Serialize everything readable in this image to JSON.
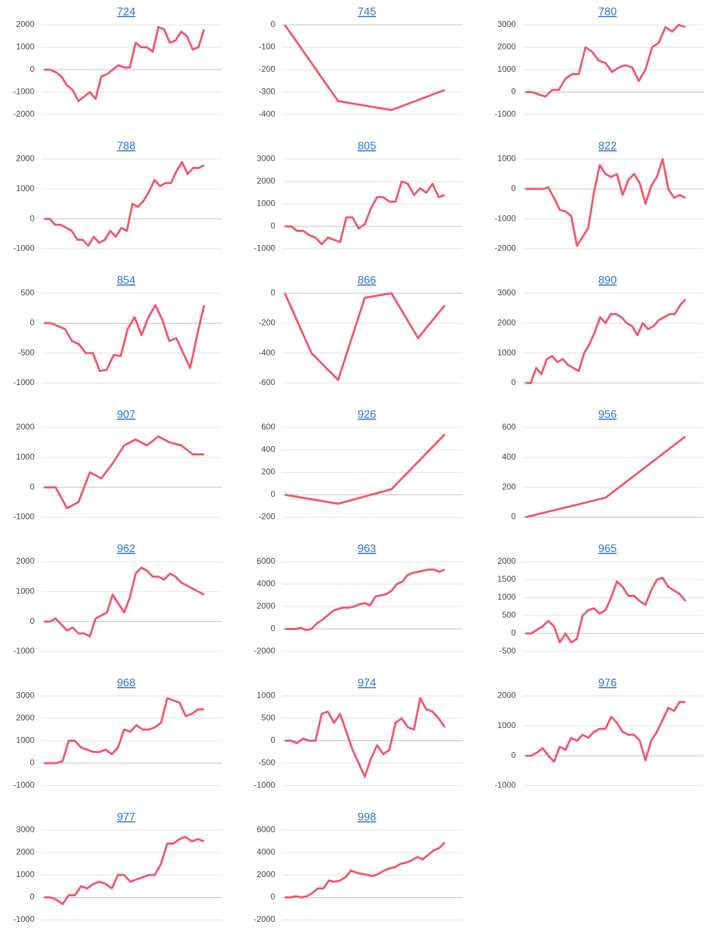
{
  "chart_data": [
    {
      "type": "line",
      "title": "724",
      "color": "#f25570",
      "ylim": [
        -2000,
        2000
      ],
      "yticks": [
        2000,
        1000,
        0,
        -1000,
        -2000
      ],
      "grid": true,
      "values": [
        0,
        0,
        -100,
        -300,
        -700,
        -900,
        -1400,
        -1200,
        -1000,
        -1300,
        -300,
        -200,
        0,
        200,
        100,
        100,
        1200,
        1000,
        1000,
        800,
        1900,
        1800,
        1200,
        1300,
        1700,
        1500,
        900,
        1000,
        1800
      ]
    },
    {
      "type": "line",
      "title": "745",
      "color": "#f25570",
      "ylim": [
        -400,
        0
      ],
      "yticks": [
        0,
        -100,
        -200,
        -300,
        -400
      ],
      "grid": true,
      "values": [
        0,
        -340,
        -380,
        -290
      ]
    },
    {
      "type": "line",
      "title": "780",
      "color": "#f25570",
      "ylim": [
        -1000,
        3000
      ],
      "yticks": [
        3000,
        2000,
        1000,
        0,
        -1000
      ],
      "grid": true,
      "values": [
        0,
        0,
        -100,
        -200,
        100,
        100,
        600,
        800,
        800,
        2000,
        1800,
        1400,
        1300,
        900,
        1100,
        1200,
        1100,
        500,
        1000,
        2000,
        2200,
        2900,
        2700,
        3000,
        2900
      ]
    },
    {
      "type": "line",
      "title": "788",
      "color": "#f25570",
      "ylim": [
        -1000,
        2000
      ],
      "yticks": [
        2000,
        1000,
        0,
        -1000
      ],
      "grid": true,
      "values": [
        0,
        0,
        -200,
        -200,
        -300,
        -400,
        -700,
        -700,
        -900,
        -600,
        -800,
        -700,
        -400,
        -600,
        -300,
        -400,
        500,
        400,
        600,
        900,
        1300,
        1100,
        1200,
        1200,
        1600,
        1900,
        1500,
        1700,
        1700,
        1800
      ]
    },
    {
      "type": "line",
      "title": "805",
      "color": "#f25570",
      "ylim": [
        -1000,
        3000
      ],
      "yticks": [
        3000,
        2000,
        1000,
        0,
        -1000
      ],
      "grid": true,
      "values": [
        0,
        0,
        -200,
        -200,
        -400,
        -500,
        -800,
        -500,
        -600,
        -700,
        400,
        400,
        -100,
        100,
        800,
        1300,
        1300,
        1100,
        1100,
        2000,
        1900,
        1400,
        1700,
        1500,
        1900,
        1300,
        1400
      ]
    },
    {
      "type": "line",
      "title": "822",
      "color": "#f25570",
      "ylim": [
        -2000,
        1000
      ],
      "yticks": [
        1000,
        0,
        -1000,
        -2000
      ],
      "grid": true,
      "values": [
        0,
        0,
        0,
        0,
        50,
        -300,
        -700,
        -750,
        -900,
        -1900,
        -1600,
        -1300,
        -100,
        800,
        500,
        400,
        500,
        -200,
        300,
        500,
        200,
        -500,
        100,
        400,
        1000,
        0,
        -300,
        -200,
        -300
      ]
    },
    {
      "type": "line",
      "title": "854",
      "color": "#f25570",
      "ylim": [
        -1000,
        500
      ],
      "yticks": [
        500,
        0,
        -500,
        -1000
      ],
      "grid": true,
      "values": [
        0,
        0,
        -50,
        -100,
        -300,
        -350,
        -500,
        -500,
        -800,
        -780,
        -530,
        -550,
        -100,
        100,
        -200,
        100,
        300,
        50,
        -300,
        -250,
        -500,
        -750,
        -200,
        300
      ]
    },
    {
      "type": "line",
      "title": "866",
      "color": "#f25570",
      "ylim": [
        -600,
        0
      ],
      "yticks": [
        0,
        -200,
        -400,
        -600
      ],
      "grid": true,
      "values": [
        0,
        -400,
        -580,
        -30,
        0,
        -300,
        -80
      ]
    },
    {
      "type": "line",
      "title": "890",
      "color": "#f25570",
      "ylim": [
        0,
        3000
      ],
      "yticks": [
        3000,
        2000,
        1000,
        0
      ],
      "grid": true,
      "values": [
        0,
        0,
        500,
        300,
        800,
        900,
        700,
        800,
        600,
        500,
        400,
        1000,
        1300,
        1700,
        2200,
        2000,
        2300,
        2300,
        2200,
        2000,
        1900,
        1600,
        2000,
        1800,
        1900,
        2100,
        2200,
        2300,
        2300,
        2600,
        2800
      ]
    },
    {
      "type": "line",
      "title": "907",
      "color": "#f25570",
      "ylim": [
        -1000,
        2000
      ],
      "yticks": [
        2000,
        1000,
        0,
        -1000
      ],
      "grid": true,
      "values": [
        0,
        0,
        -700,
        -500,
        500,
        300,
        800,
        1400,
        1600,
        1400,
        1700,
        1500,
        1400,
        1100,
        1100
      ]
    },
    {
      "type": "line",
      "title": "926",
      "color": "#f25570",
      "ylim": [
        -200,
        600
      ],
      "yticks": [
        600,
        400,
        200,
        0,
        -200
      ],
      "grid": true,
      "values": [
        0,
        -80,
        50,
        540
      ]
    },
    {
      "type": "line",
      "title": "956",
      "color": "#f25570",
      "ylim": [
        0,
        600
      ],
      "yticks": [
        600,
        400,
        200,
        0
      ],
      "grid": true,
      "values": [
        0,
        130,
        540
      ]
    },
    {
      "type": "line",
      "title": "962",
      "color": "#f25570",
      "ylim": [
        -1000,
        2000
      ],
      "yticks": [
        2000,
        1000,
        0,
        -1000
      ],
      "grid": true,
      "values": [
        0,
        0,
        100,
        -100,
        -300,
        -200,
        -400,
        -400,
        -500,
        100,
        200,
        300,
        900,
        600,
        300,
        800,
        1600,
        1800,
        1700,
        1500,
        1500,
        1400,
        1600,
        1500,
        1300,
        1200,
        1100,
        1000,
        900
      ]
    },
    {
      "type": "line",
      "title": "963",
      "color": "#f25570",
      "ylim": [
        -2000,
        6000
      ],
      "yticks": [
        6000,
        4000,
        2000,
        0,
        -2000
      ],
      "grid": true,
      "values": [
        0,
        0,
        0,
        100,
        -100,
        0,
        500,
        800,
        1200,
        1600,
        1800,
        1900,
        1900,
        2000,
        2200,
        2300,
        2100,
        2900,
        3000,
        3100,
        3400,
        4000,
        4200,
        4800,
        5000,
        5100,
        5200,
        5300,
        5300,
        5100,
        5300
      ]
    },
    {
      "type": "line",
      "title": "965",
      "color": "#f25570",
      "ylim": [
        -500,
        2000
      ],
      "yticks": [
        2000,
        1500,
        1000,
        500,
        0,
        -500
      ],
      "grid": true,
      "values": [
        0,
        0,
        100,
        200,
        350,
        200,
        -250,
        0,
        -250,
        -150,
        500,
        650,
        700,
        550,
        650,
        1000,
        1450,
        1300,
        1050,
        1050,
        900,
        800,
        1200,
        1500,
        1550,
        1300,
        1200,
        1100,
        900
      ]
    },
    {
      "type": "line",
      "title": "968",
      "color": "#f25570",
      "ylim": [
        -1000,
        3000
      ],
      "yticks": [
        3000,
        2000,
        1000,
        0,
        -1000
      ],
      "grid": true,
      "values": [
        0,
        0,
        0,
        100,
        1000,
        1000,
        700,
        600,
        500,
        500,
        600,
        400,
        700,
        1500,
        1400,
        1700,
        1500,
        1500,
        1600,
        1800,
        2900,
        2800,
        2700,
        2100,
        2200,
        2400,
        2400
      ]
    },
    {
      "type": "line",
      "title": "974",
      "color": "#f25570",
      "ylim": [
        -1000,
        1000
      ],
      "yticks": [
        1000,
        500,
        0,
        -500,
        -1000
      ],
      "grid": true,
      "values": [
        0,
        0,
        -50,
        50,
        0,
        0,
        600,
        650,
        400,
        600,
        200,
        -200,
        -500,
        -800,
        -400,
        -100,
        -300,
        -200,
        400,
        500,
        300,
        250,
        950,
        700,
        650,
        500,
        300
      ]
    },
    {
      "type": "line",
      "title": "976",
      "color": "#f25570",
      "ylim": [
        -1000,
        2000
      ],
      "yticks": [
        2000,
        1000,
        0,
        -1000
      ],
      "grid": true,
      "values": [
        0,
        0,
        100,
        250,
        0,
        -200,
        300,
        200,
        600,
        500,
        700,
        600,
        800,
        900,
        900,
        1300,
        1100,
        800,
        700,
        700,
        500,
        -150,
        500,
        800,
        1200,
        1600,
        1500,
        1800,
        1800
      ]
    },
    {
      "type": "line",
      "title": "977",
      "color": "#f25570",
      "ylim": [
        -1000,
        3000
      ],
      "yticks": [
        3000,
        2000,
        1000,
        0,
        -1000
      ],
      "grid": true,
      "values": [
        0,
        0,
        -100,
        -300,
        100,
        100,
        500,
        400,
        600,
        700,
        600,
        400,
        1000,
        1000,
        700,
        800,
        900,
        1000,
        1000,
        1500,
        2400,
        2400,
        2600,
        2700,
        2500,
        2600,
        2500
      ]
    },
    {
      "type": "line",
      "title": "998",
      "color": "#f25570",
      "ylim": [
        -2000,
        6000
      ],
      "yticks": [
        6000,
        4000,
        2000,
        0,
        -2000
      ],
      "grid": true,
      "values": [
        0,
        0,
        100,
        0,
        100,
        400,
        800,
        800,
        1500,
        1400,
        1500,
        1800,
        2400,
        2200,
        2100,
        2000,
        1900,
        2100,
        2400,
        2600,
        2700,
        3000,
        3100,
        3300,
        3600,
        3400,
        3800,
        4200,
        4400,
        4900
      ]
    }
  ]
}
